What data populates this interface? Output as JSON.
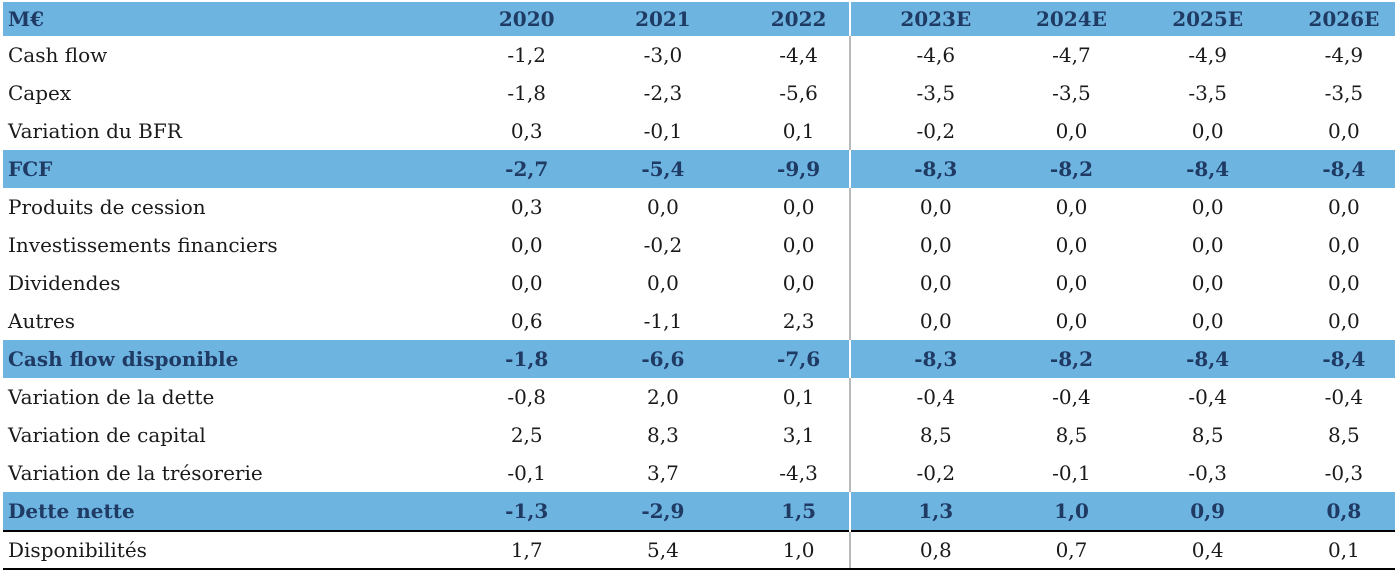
{
  "header": {
    "unit_label": "M€",
    "years": [
      "2020",
      "2021",
      "2022",
      "2023E",
      "2024E",
      "2025E",
      "2026E"
    ]
  },
  "rows": [
    {
      "label": "Cash flow",
      "highlight": false,
      "values": [
        "-1,2",
        "-3,0",
        "-4,4",
        "-4,6",
        "-4,7",
        "-4,9",
        "-4,9"
      ]
    },
    {
      "label": "Capex",
      "highlight": false,
      "values": [
        "-1,8",
        "-2,3",
        "-5,6",
        "-3,5",
        "-3,5",
        "-3,5",
        "-3,5"
      ]
    },
    {
      "label": "Variation du BFR",
      "highlight": false,
      "values": [
        "0,3",
        "-0,1",
        "0,1",
        "-0,2",
        "0,0",
        "0,0",
        "0,0"
      ]
    },
    {
      "label": "FCF",
      "highlight": true,
      "values": [
        "-2,7",
        "-5,4",
        "-9,9",
        "-8,3",
        "-8,2",
        "-8,4",
        "-8,4"
      ]
    },
    {
      "label": "Produits de cession",
      "highlight": false,
      "values": [
        "0,3",
        "0,0",
        "0,0",
        "0,0",
        "0,0",
        "0,0",
        "0,0"
      ]
    },
    {
      "label": "Investissements financiers",
      "highlight": false,
      "values": [
        "0,0",
        "-0,2",
        "0,0",
        "0,0",
        "0,0",
        "0,0",
        "0,0"
      ]
    },
    {
      "label": "Dividendes",
      "highlight": false,
      "values": [
        "0,0",
        "0,0",
        "0,0",
        "0,0",
        "0,0",
        "0,0",
        "0,0"
      ]
    },
    {
      "label": "Autres",
      "highlight": false,
      "values": [
        "0,6",
        "-1,1",
        "2,3",
        "0,0",
        "0,0",
        "0,0",
        "0,0"
      ]
    },
    {
      "label": "Cash flow disponible",
      "highlight": true,
      "values": [
        "-1,8",
        "-6,6",
        "-7,6",
        "-8,3",
        "-8,2",
        "-8,4",
        "-8,4"
      ]
    },
    {
      "label": "Variation de la dette",
      "highlight": false,
      "values": [
        "-0,8",
        "2,0",
        "0,1",
        "-0,4",
        "-0,4",
        "-0,4",
        "-0,4"
      ]
    },
    {
      "label": "Variation de capital",
      "highlight": false,
      "values": [
        "2,5",
        "8,3",
        "3,1",
        "8,5",
        "8,5",
        "8,5",
        "8,5"
      ]
    },
    {
      "label": "Variation de la trésorerie",
      "highlight": false,
      "values": [
        "-0,1",
        "3,7",
        "-4,3",
        "-0,2",
        "-0,1",
        "-0,3",
        "-0,3"
      ]
    },
    {
      "label": "Dette nette",
      "highlight": true,
      "values": [
        "-1,3",
        "-2,9",
        "1,5",
        "1,3",
        "1,0",
        "0,9",
        "0,8"
      ]
    },
    {
      "label": "Disponibilités",
      "highlight": false,
      "last": true,
      "values": [
        "1,7",
        "5,4",
        "1,0",
        "0,8",
        "0,7",
        "0,4",
        "0,1"
      ]
    }
  ],
  "colors": {
    "band": "#6eb4e1",
    "band_text": "#1f3a63",
    "text": "#1a1a1a"
  }
}
